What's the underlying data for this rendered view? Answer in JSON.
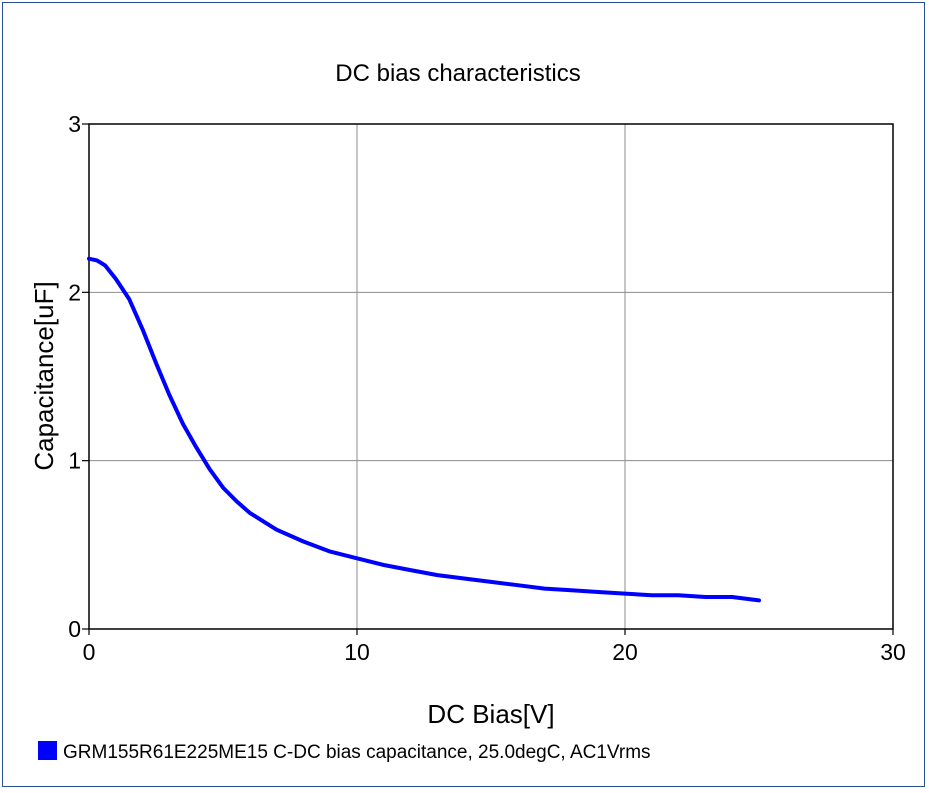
{
  "chart_data": {
    "type": "line",
    "title": "DC bias characteristics",
    "xlabel": "DC Bias[V]",
    "ylabel": "Capacitance[uF]",
    "xlim": [
      0,
      30
    ],
    "ylim": [
      0,
      3
    ],
    "xticks": [
      0,
      10,
      20,
      30
    ],
    "yticks": [
      0,
      1,
      2,
      3
    ],
    "xtick_labels": [
      "0",
      "10",
      "20",
      "30"
    ],
    "ytick_labels": [
      "0",
      "1",
      "2",
      "3"
    ],
    "grid": true,
    "legend_position": "bottom",
    "series": [
      {
        "name": "GRM155R61E225ME15 C-DC bias capacitance, 25.0degC, AC1Vrms",
        "color": "#0000ff",
        "x": [
          0,
          0.3,
          0.6,
          1.0,
          1.5,
          2.0,
          2.5,
          3.0,
          3.5,
          4.0,
          4.5,
          5.0,
          5.5,
          6.0,
          6.5,
          7.0,
          8.0,
          9.0,
          10.0,
          11.0,
          12.0,
          13.0,
          14.0,
          15.0,
          16.0,
          17.0,
          18.0,
          19.0,
          20.0,
          21.0,
          22.0,
          23.0,
          24.0,
          25.0
        ],
        "y": [
          2.2,
          2.19,
          2.16,
          2.08,
          1.96,
          1.78,
          1.58,
          1.39,
          1.22,
          1.08,
          0.95,
          0.84,
          0.76,
          0.69,
          0.64,
          0.59,
          0.52,
          0.46,
          0.42,
          0.38,
          0.35,
          0.32,
          0.3,
          0.28,
          0.26,
          0.24,
          0.23,
          0.22,
          0.21,
          0.2,
          0.2,
          0.19,
          0.19,
          0.17
        ]
      }
    ]
  }
}
